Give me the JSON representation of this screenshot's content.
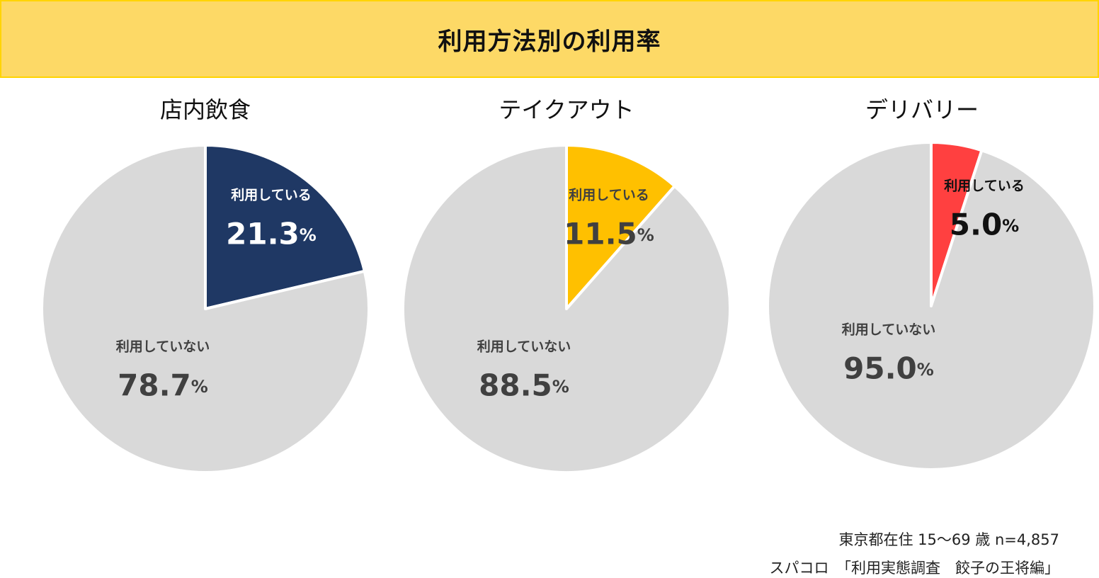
{
  "header": {
    "title": "利用方法別の利用率"
  },
  "chart_data": [
    {
      "type": "pie",
      "title": "店内飲食",
      "slices": [
        {
          "label": "利用している",
          "value": 21.3,
          "display": "21.3",
          "color": "#1F3864",
          "text_color": "#FFFFFF"
        },
        {
          "label": "利用していない",
          "value": 78.7,
          "display": "78.7",
          "color": "#D9D9D9",
          "text_color": "#404040"
        }
      ],
      "unit": "%"
    },
    {
      "type": "pie",
      "title": "テイクアウト",
      "slices": [
        {
          "label": "利用している",
          "value": 11.5,
          "display": "11.5",
          "color": "#FFC000",
          "text_color": "#404040"
        },
        {
          "label": "利用していない",
          "value": 88.5,
          "display": "88.5",
          "color": "#D9D9D9",
          "text_color": "#404040"
        }
      ],
      "unit": "%"
    },
    {
      "type": "pie",
      "title": "デリバリー",
      "slices": [
        {
          "label": "利用している",
          "value": 5.0,
          "display": "5.0",
          "color": "#FF4040",
          "text_color": "#111111"
        },
        {
          "label": "利用していない",
          "value": 95.0,
          "display": "95.0",
          "color": "#D9D9D9",
          "text_color": "#404040"
        }
      ],
      "unit": "%"
    }
  ],
  "source": {
    "line1": "東京都在住 15～69 歳 n=4,857",
    "line2": "スパコロ　「利用実態調査　餃子の王将編」"
  }
}
